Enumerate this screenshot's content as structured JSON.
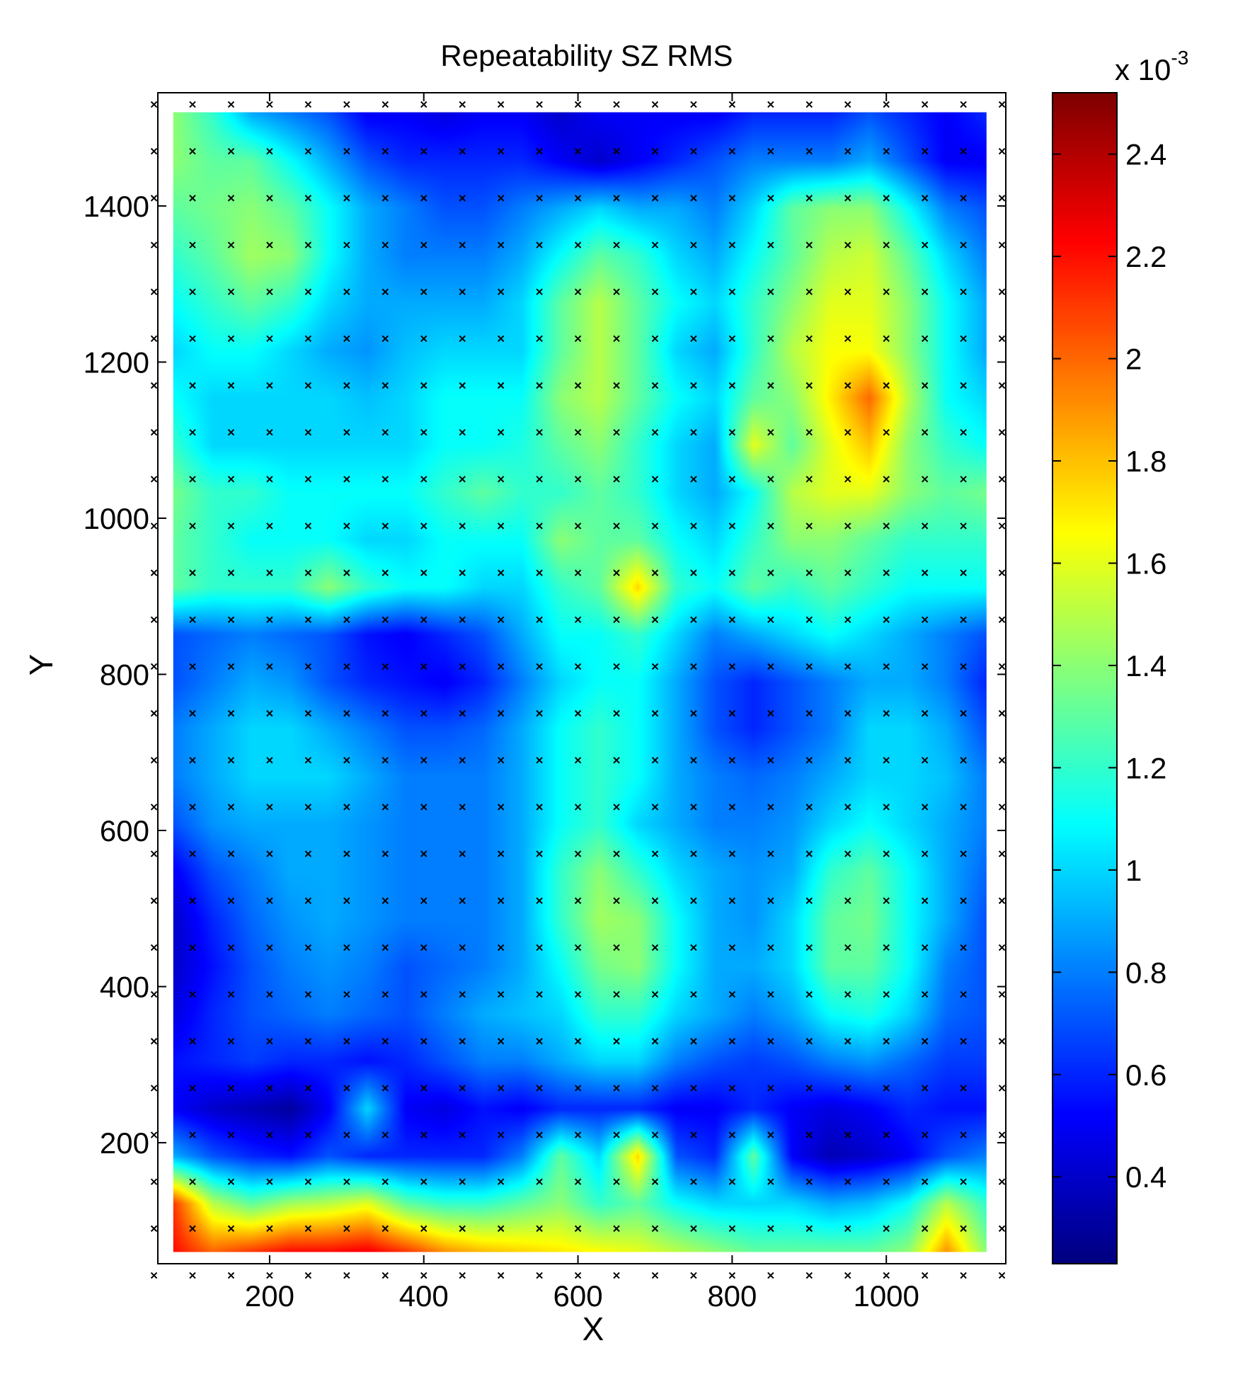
{
  "chart_data": {
    "type": "heatmap",
    "title": "Repeatability SZ RMS",
    "xlabel": "X",
    "ylabel": "Y",
    "xlim": [
      55,
      1155
    ],
    "ylim": [
      45,
      1545
    ],
    "xticks": [
      200,
      400,
      600,
      800,
      1000
    ],
    "yticks": [
      200,
      400,
      600,
      800,
      1000,
      1200,
      1400
    ],
    "surface_extent": {
      "x": [
        75,
        1130
      ],
      "y": [
        60,
        1520
      ]
    },
    "grid_x": [
      50,
      100,
      150,
      200,
      250,
      300,
      350,
      400,
      450,
      500,
      550,
      600,
      650,
      700,
      750,
      800,
      850,
      900,
      950,
      1000,
      1050,
      1100,
      1150
    ],
    "grid_y": [
      30,
      90,
      150,
      210,
      270,
      330,
      390,
      450,
      510,
      570,
      630,
      690,
      750,
      810,
      870,
      930,
      990,
      1050,
      1110,
      1170,
      1230,
      1290,
      1350,
      1410,
      1470,
      1530
    ],
    "colorbar": {
      "range": [
        0.23,
        2.52
      ],
      "ticks": [
        "0.4",
        "0.6",
        "0.8",
        "1",
        "1.2",
        "1.4",
        "1.6",
        "1.8",
        "2",
        "2.2",
        "2.4"
      ],
      "tick_values": [
        0.4,
        0.6,
        0.8,
        1.0,
        1.2,
        1.4,
        1.6,
        1.8,
        2.0,
        2.2,
        2.4
      ],
      "multiplier_base": "x 10",
      "multiplier_exp": "-3",
      "colormap": "jet"
    },
    "values_row_order": "top-to-bottom",
    "values": [
      [
        1.4,
        1.2,
        0.9,
        0.8,
        0.7,
        0.5,
        0.5,
        0.45,
        0.5,
        0.5,
        0.4,
        0.5,
        0.5,
        0.5,
        0.5,
        0.6,
        0.6,
        0.6,
        0.7,
        0.6,
        0.5,
        0.6
      ],
      [
        1.4,
        1.3,
        1.3,
        1.1,
        0.9,
        0.7,
        0.6,
        0.6,
        0.6,
        0.6,
        0.5,
        0.4,
        0.5,
        0.6,
        0.7,
        0.8,
        0.8,
        0.8,
        0.9,
        0.7,
        0.5,
        0.5
      ],
      [
        1.3,
        1.35,
        1.4,
        1.3,
        1.1,
        0.9,
        0.8,
        0.7,
        0.7,
        0.8,
        0.9,
        1.0,
        0.9,
        0.9,
        0.8,
        1.0,
        1.3,
        1.4,
        1.4,
        1.1,
        0.8,
        0.7
      ],
      [
        1.2,
        1.3,
        1.45,
        1.4,
        1.1,
        0.9,
        0.8,
        0.8,
        0.8,
        0.9,
        1.1,
        1.3,
        1.2,
        1.0,
        0.9,
        1.1,
        1.3,
        1.5,
        1.55,
        1.3,
        1.0,
        0.8
      ],
      [
        1.1,
        1.2,
        1.3,
        1.2,
        1.0,
        0.9,
        0.9,
        0.9,
        0.9,
        1.0,
        1.3,
        1.5,
        1.3,
        1.1,
        1.0,
        1.2,
        1.4,
        1.6,
        1.6,
        1.4,
        1.1,
        0.9
      ],
      [
        1.0,
        1.1,
        1.1,
        1.0,
        0.9,
        0.85,
        0.95,
        1.0,
        1.0,
        1.0,
        1.3,
        1.5,
        1.3,
        1.0,
        0.9,
        1.2,
        1.5,
        1.65,
        1.65,
        1.4,
        1.1,
        0.9
      ],
      [
        1.1,
        1.0,
        1.0,
        1.0,
        1.0,
        0.95,
        1.0,
        1.1,
        1.1,
        1.1,
        1.4,
        1.5,
        1.3,
        1.1,
        1.0,
        1.3,
        1.4,
        1.7,
        2.0,
        1.5,
        1.1,
        1.0
      ],
      [
        1.2,
        1.0,
        1.0,
        1.0,
        1.0,
        1.0,
        1.0,
        1.1,
        1.1,
        1.15,
        1.3,
        1.4,
        1.2,
        1.0,
        0.9,
        1.6,
        1.3,
        1.6,
        1.8,
        1.4,
        1.2,
        1.1
      ],
      [
        1.35,
        1.2,
        1.2,
        1.1,
        1.1,
        1.1,
        1.1,
        1.2,
        1.3,
        1.2,
        1.2,
        1.3,
        1.2,
        1.0,
        0.9,
        1.1,
        1.5,
        1.6,
        1.6,
        1.4,
        1.3,
        1.35
      ],
      [
        1.3,
        1.2,
        1.1,
        1.1,
        1.1,
        1.0,
        1.0,
        1.1,
        1.1,
        1.1,
        1.4,
        1.3,
        1.3,
        1.1,
        1.0,
        1.2,
        1.4,
        1.4,
        1.3,
        1.2,
        1.2,
        1.2
      ],
      [
        1.3,
        1.2,
        1.2,
        1.2,
        1.4,
        1.2,
        1.1,
        1.1,
        1.0,
        1.0,
        1.2,
        1.3,
        1.75,
        1.2,
        1.1,
        1.3,
        1.2,
        1.3,
        1.2,
        1.1,
        1.1,
        1.1
      ],
      [
        0.7,
        0.75,
        0.8,
        0.75,
        0.7,
        0.55,
        0.5,
        0.6,
        0.7,
        0.9,
        1.1,
        1.1,
        1.2,
        1.0,
        0.8,
        0.9,
        1.0,
        1.1,
        1.0,
        0.9,
        0.8,
        0.7
      ],
      [
        0.7,
        0.8,
        0.9,
        0.85,
        0.7,
        0.6,
        0.55,
        0.5,
        0.6,
        0.8,
        1.0,
        1.1,
        1.1,
        0.9,
        0.7,
        0.6,
        0.7,
        0.8,
        0.9,
        0.9,
        0.8,
        0.6
      ],
      [
        0.8,
        0.9,
        1.0,
        1.0,
        0.9,
        0.8,
        0.7,
        0.7,
        0.75,
        0.9,
        1.1,
        1.2,
        1.1,
        0.9,
        0.7,
        0.6,
        0.7,
        0.8,
        1.0,
        1.0,
        0.9,
        0.7
      ],
      [
        0.8,
        0.9,
        1.0,
        1.0,
        1.0,
        0.9,
        0.8,
        0.8,
        0.8,
        0.9,
        1.1,
        1.2,
        1.1,
        0.9,
        0.8,
        0.75,
        0.8,
        0.9,
        1.0,
        1.0,
        0.95,
        0.8
      ],
      [
        0.7,
        0.85,
        0.9,
        0.9,
        0.9,
        0.85,
        0.8,
        0.8,
        0.8,
        0.9,
        1.1,
        1.2,
        1.0,
        0.9,
        0.8,
        0.8,
        0.85,
        1.0,
        1.1,
        1.0,
        0.9,
        0.8
      ],
      [
        0.5,
        0.7,
        0.8,
        0.9,
        0.9,
        0.85,
        0.8,
        0.8,
        0.8,
        0.9,
        1.2,
        1.4,
        1.2,
        1.0,
        0.9,
        0.85,
        0.9,
        1.2,
        1.3,
        1.1,
        0.9,
        0.75
      ],
      [
        0.4,
        0.6,
        0.75,
        0.85,
        0.9,
        0.85,
        0.8,
        0.8,
        0.8,
        0.9,
        1.2,
        1.45,
        1.4,
        1.1,
        0.9,
        0.85,
        1.0,
        1.3,
        1.35,
        1.1,
        0.9,
        0.7
      ],
      [
        0.4,
        0.55,
        0.7,
        0.8,
        0.85,
        0.8,
        0.7,
        0.75,
        0.8,
        0.9,
        1.1,
        1.35,
        1.4,
        1.1,
        0.9,
        0.9,
        1.0,
        1.3,
        1.3,
        1.1,
        0.8,
        0.7
      ],
      [
        0.45,
        0.6,
        0.7,
        0.75,
        0.8,
        0.75,
        0.7,
        0.8,
        0.9,
        0.95,
        1.0,
        1.2,
        1.2,
        1.0,
        0.9,
        0.8,
        0.9,
        1.1,
        1.15,
        1.0,
        0.75,
        0.7
      ],
      [
        0.55,
        0.6,
        0.65,
        0.6,
        0.6,
        0.55,
        0.6,
        0.7,
        0.8,
        0.8,
        0.9,
        1.0,
        1.0,
        0.8,
        0.7,
        0.65,
        0.7,
        0.8,
        0.85,
        0.75,
        0.65,
        0.65
      ],
      [
        0.5,
        0.4,
        0.35,
        0.3,
        0.5,
        1.0,
        0.5,
        0.45,
        0.55,
        0.5,
        0.6,
        0.6,
        0.6,
        0.5,
        0.5,
        0.6,
        0.5,
        0.45,
        0.5,
        0.6,
        0.55,
        0.55
      ],
      [
        0.9,
        0.7,
        0.6,
        0.55,
        0.7,
        0.6,
        0.6,
        0.6,
        0.6,
        0.8,
        1.3,
        1.0,
        1.75,
        0.7,
        0.6,
        1.3,
        0.5,
        0.35,
        0.4,
        0.5,
        0.7,
        0.8
      ],
      [
        2.1,
        1.5,
        1.3,
        1.45,
        1.5,
        1.6,
        1.3,
        1.2,
        1.2,
        1.3,
        1.4,
        1.2,
        1.3,
        1.1,
        1.0,
        1.0,
        1.0,
        0.9,
        0.95,
        1.1,
        1.5,
        1.2
      ],
      [
        2.2,
        2.0,
        2.1,
        2.2,
        2.2,
        2.25,
        2.1,
        1.9,
        1.8,
        1.75,
        1.7,
        1.65,
        1.6,
        1.5,
        1.4,
        1.3,
        1.3,
        1.3,
        1.3,
        1.4,
        1.9,
        1.4
      ]
    ]
  }
}
